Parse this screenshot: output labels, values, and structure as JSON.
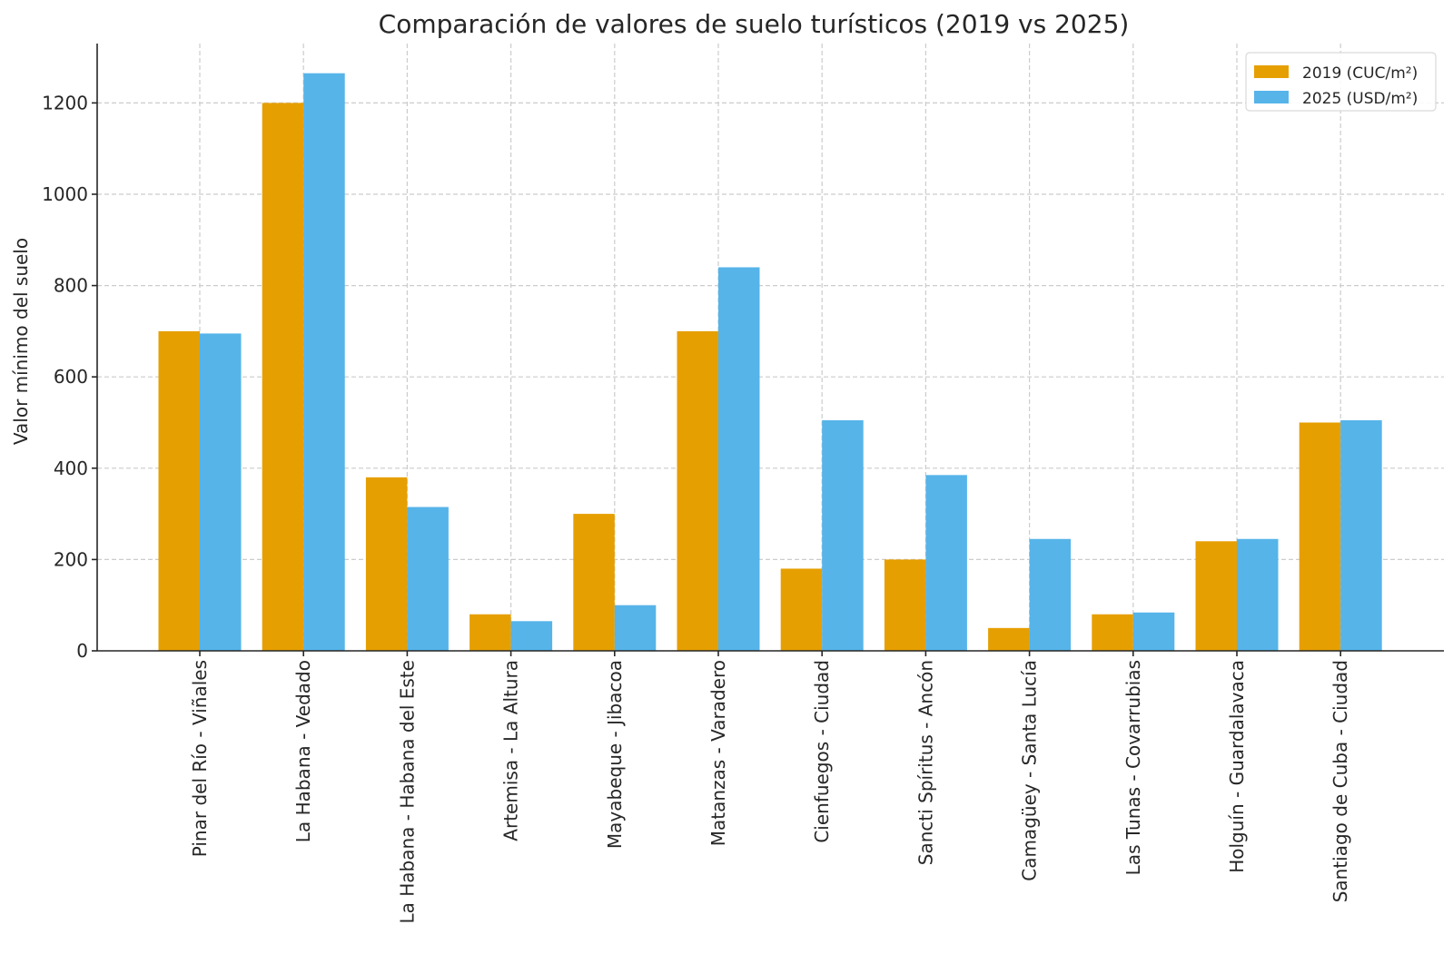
{
  "chart_data": {
    "type": "bar",
    "title": "Comparación de valores de suelo turísticos (2019 vs 2025)",
    "xlabel": "",
    "ylabel": "Valor mínimo del suelo",
    "ylim": [
      0,
      1330
    ],
    "yticks": [
      0,
      200,
      400,
      600,
      800,
      1000,
      1200
    ],
    "grid": true,
    "legend_position": "top-right",
    "categories": [
      "Pinar del Río - Viñales",
      "La Habana - Vedado",
      "La Habana - Habana del Este",
      "Artemisa - La Altura",
      "Mayabeque - Jibacoa",
      "Matanzas - Varadero",
      "Cienfuegos - Ciudad",
      "Sancti Spíritus - Ancón",
      "Camagüey - Santa Lucía",
      "Las Tunas - Covarrubias",
      "Holguín - Guardalavaca",
      "Santiago de Cuba - Ciudad"
    ],
    "series": [
      {
        "name": "2019 (CUC/m²)",
        "color": "#E69F00",
        "values": [
          700,
          1200,
          380,
          80,
          300,
          700,
          180,
          200,
          50,
          80,
          240,
          500
        ]
      },
      {
        "name": "2025 (USD/m²)",
        "color": "#56B4E9",
        "values": [
          695,
          1265,
          315,
          65,
          100,
          840,
          505,
          385,
          245,
          84,
          245,
          505
        ]
      }
    ]
  }
}
